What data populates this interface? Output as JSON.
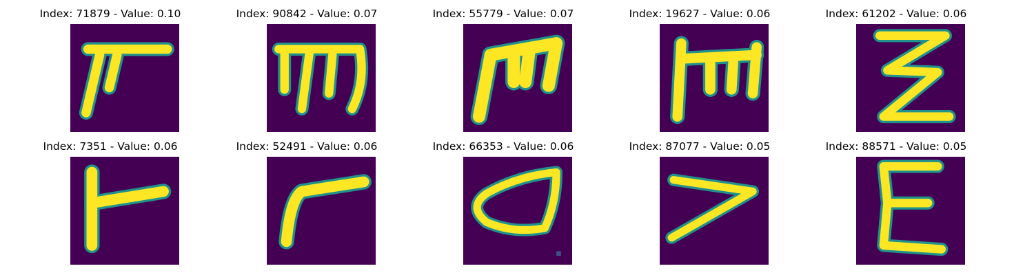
{
  "figure": {
    "colormap_colors": {
      "background": "#440154",
      "edge": "#21918c",
      "mid": "#5ec962",
      "stroke": "#fde725"
    },
    "panels": [
      {
        "title": "Index: 71879 - Value: 0.10",
        "index": 71879,
        "value": 0.1,
        "glyph": "glyph-a"
      },
      {
        "title": "Index: 90842 - Value: 0.07",
        "index": 90842,
        "value": 0.07,
        "glyph": "glyph-b"
      },
      {
        "title": "Index: 55779 - Value: 0.07",
        "index": 55779,
        "value": 0.07,
        "glyph": "glyph-c"
      },
      {
        "title": "Index: 19627 - Value: 0.06",
        "index": 19627,
        "value": 0.06,
        "glyph": "glyph-d"
      },
      {
        "title": "Index: 61202 - Value: 0.06",
        "index": 61202,
        "value": 0.06,
        "glyph": "glyph-e"
      },
      {
        "title": "Index: 7351 - Value: 0.06",
        "index": 7351,
        "value": 0.06,
        "glyph": "glyph-f"
      },
      {
        "title": "Index: 52491 - Value: 0.06",
        "index": 52491,
        "value": 0.06,
        "glyph": "glyph-g"
      },
      {
        "title": "Index: 66353 - Value: 0.06",
        "index": 66353,
        "value": 0.06,
        "glyph": "glyph-h"
      },
      {
        "title": "Index: 87077 - Value: 0.05",
        "index": 87077,
        "value": 0.05,
        "glyph": "glyph-i"
      },
      {
        "title": "Index: 88571 - Value: 0.05",
        "index": 88571,
        "value": 0.05,
        "glyph": "glyph-j"
      }
    ]
  }
}
